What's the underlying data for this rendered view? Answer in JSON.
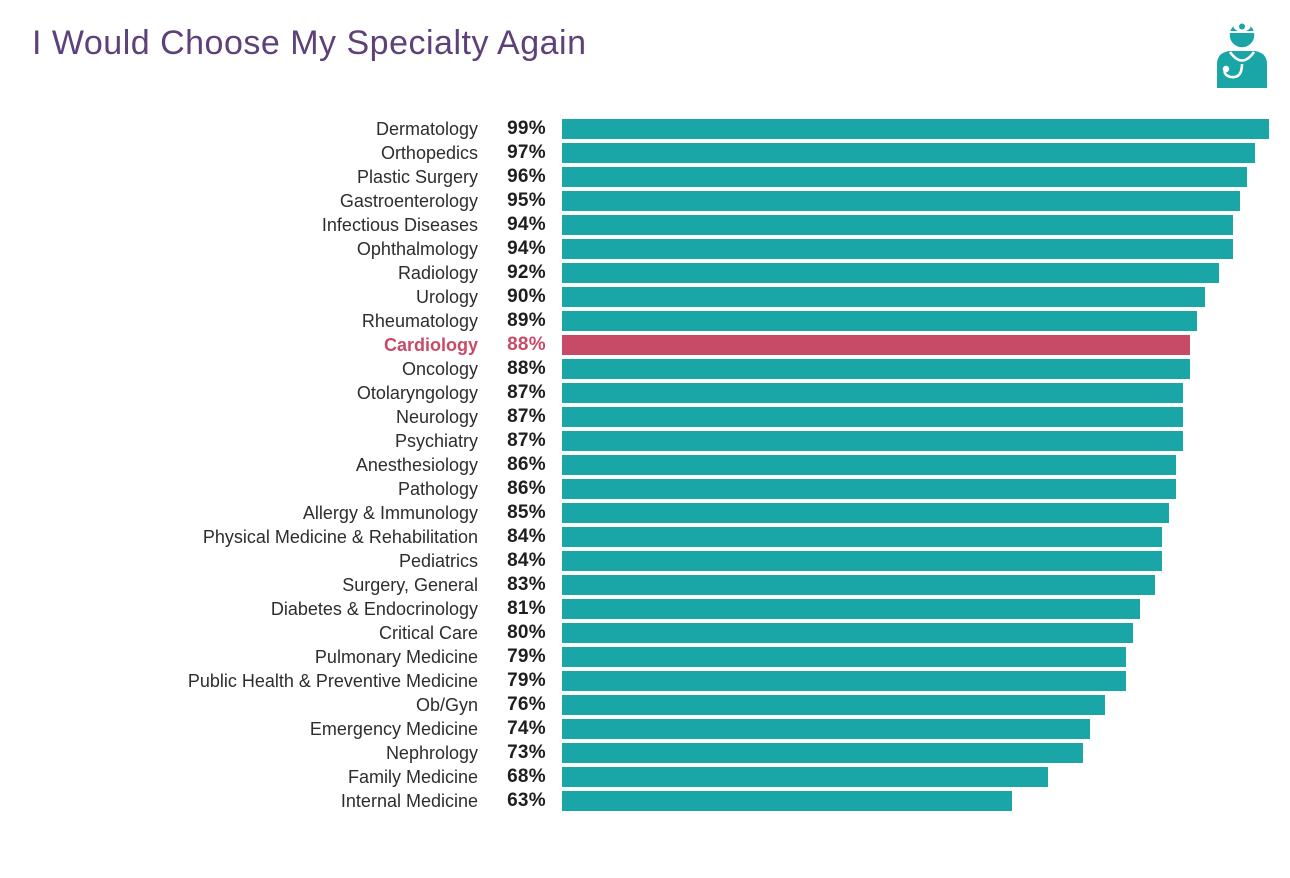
{
  "header": {
    "title_color": "#5D4178",
    "icon": "doctor-icon",
    "icon_color": "#1AA6A6"
  },
  "chart_data": {
    "type": "bar",
    "orientation": "horizontal",
    "title": "I Would Choose My Specialty Again",
    "unit": "%",
    "xlim": [
      0,
      100
    ],
    "grid": false,
    "legend": "none",
    "bar_color": "#1AA6A6",
    "label_color": "#2D2D2D",
    "value_color": "#1E1E1E",
    "highlight": {
      "index": 9,
      "category": "Cardiology",
      "value": 88,
      "color": "#C74B66"
    },
    "categories": [
      "Dermatology",
      "Orthopedics",
      "Plastic Surgery",
      "Gastroenterology",
      "Infectious Diseases",
      "Ophthalmology",
      "Radiology",
      "Urology",
      "Rheumatology",
      "Cardiology",
      "Oncology",
      "Otolaryngology",
      "Neurology",
      "Psychiatry",
      "Anesthesiology",
      "Pathology",
      "Allergy & Immunology",
      "Physical Medicine & Rehabilitation",
      "Pediatrics",
      "Surgery, General",
      "Diabetes & Endocrinology",
      "Critical Care",
      "Pulmonary Medicine",
      "Public Health & Preventive Medicine",
      "Ob/Gyn",
      "Emergency Medicine",
      "Nephrology",
      "Family Medicine",
      "Internal Medicine"
    ],
    "values": [
      99,
      97,
      96,
      95,
      94,
      94,
      92,
      90,
      89,
      88,
      88,
      87,
      87,
      87,
      86,
      86,
      85,
      84,
      84,
      83,
      81,
      80,
      79,
      79,
      76,
      74,
      73,
      68,
      63
    ]
  }
}
